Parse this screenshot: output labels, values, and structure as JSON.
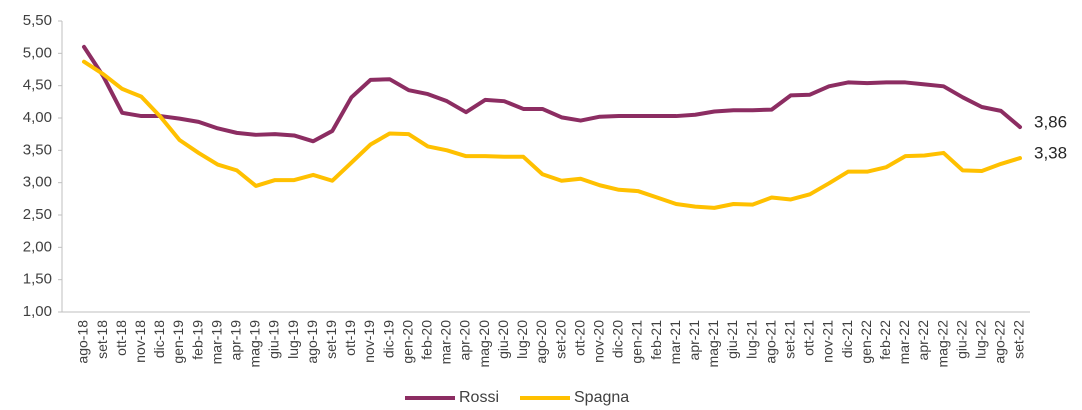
{
  "chart_data": {
    "type": "line",
    "categories": [
      "ago-18",
      "set-18",
      "ott-18",
      "nov-18",
      "dic-18",
      "gen-19",
      "feb-19",
      "mar-19",
      "apr-19",
      "mag-19",
      "giu-19",
      "lug-19",
      "ago-19",
      "set-19",
      "ott-19",
      "nov-19",
      "dic-19",
      "gen-20",
      "feb-20",
      "mar-20",
      "apr-20",
      "mag-20",
      "giu-20",
      "lug-20",
      "ago-20",
      "set-20",
      "ott-20",
      "nov-20",
      "dic-20",
      "gen-21",
      "feb-21",
      "mar-21",
      "apr-21",
      "mag-21",
      "giu-21",
      "lug-21",
      "ago-21",
      "set-21",
      "ott-21",
      "nov-21",
      "dic-21",
      "gen-22",
      "feb-22",
      "mar-22",
      "apr-22",
      "mag-22",
      "giu-22",
      "lug-22",
      "ago-22",
      "set-22"
    ],
    "series": [
      {
        "name": "Rossi",
        "color": "#8c2d62",
        "values": [
          5.1,
          4.65,
          4.08,
          4.03,
          4.03,
          3.99,
          3.94,
          3.84,
          3.77,
          3.74,
          3.75,
          3.73,
          3.64,
          3.8,
          4.32,
          4.59,
          4.6,
          4.43,
          4.37,
          4.26,
          4.09,
          4.28,
          4.26,
          4.14,
          4.14,
          4.01,
          3.96,
          4.02,
          4.03,
          4.03,
          4.03,
          4.03,
          4.05,
          4.1,
          4.12,
          4.12,
          4.13,
          4.35,
          4.36,
          4.49,
          4.55,
          4.54,
          4.55,
          4.55,
          4.52,
          4.49,
          4.32,
          4.17,
          4.11,
          3.86
        ],
        "value_labels": [
          null,
          null,
          null,
          null,
          null,
          null,
          null,
          null,
          null,
          null,
          null,
          null,
          null,
          null,
          null,
          null,
          null,
          null,
          null,
          null,
          null,
          null,
          null,
          null,
          null,
          null,
          null,
          null,
          null,
          null,
          null,
          null,
          null,
          null,
          null,
          null,
          null,
          null,
          null,
          null,
          null,
          null,
          null,
          null,
          null,
          null,
          null,
          null,
          null,
          "3,86"
        ]
      },
      {
        "name": "Spagna",
        "color": "#ffc000",
        "values": [
          4.87,
          4.68,
          4.45,
          4.33,
          4.02,
          3.66,
          3.46,
          3.28,
          3.19,
          2.95,
          3.04,
          3.04,
          3.12,
          3.03,
          3.31,
          3.59,
          3.76,
          3.75,
          3.56,
          3.5,
          3.41,
          3.41,
          3.4,
          3.4,
          3.13,
          3.03,
          3.06,
          2.96,
          2.89,
          2.87,
          2.77,
          2.67,
          2.63,
          2.61,
          2.67,
          2.66,
          2.77,
          2.74,
          2.82,
          2.99,
          3.17,
          3.17,
          3.24,
          3.41,
          3.42,
          3.46,
          3.19,
          3.18,
          3.29,
          3.38
        ],
        "value_labels": [
          null,
          null,
          null,
          null,
          null,
          null,
          null,
          null,
          null,
          null,
          null,
          null,
          null,
          null,
          null,
          null,
          null,
          null,
          null,
          null,
          null,
          null,
          null,
          null,
          null,
          null,
          null,
          null,
          null,
          null,
          null,
          null,
          null,
          null,
          null,
          null,
          null,
          null,
          null,
          null,
          null,
          null,
          null,
          null,
          null,
          null,
          null,
          null,
          null,
          "3,38"
        ]
      }
    ],
    "ylim": [
      1,
      5.5
    ],
    "yticks": [
      {
        "value": 1,
        "label": "1,00"
      },
      {
        "value": 1.5,
        "label": "1,50"
      },
      {
        "value": 2,
        "label": "2,00"
      },
      {
        "value": 2.5,
        "label": "2,50"
      },
      {
        "value": 3,
        "label": "3,00"
      },
      {
        "value": 3.5,
        "label": "3,50"
      },
      {
        "value": 4,
        "label": "4,00"
      },
      {
        "value": 4.5,
        "label": "4,50"
      },
      {
        "value": 5,
        "label": "5,00"
      },
      {
        "value": 5.5,
        "label": "5,50"
      }
    ],
    "grid": false,
    "legend": "bottom"
  }
}
